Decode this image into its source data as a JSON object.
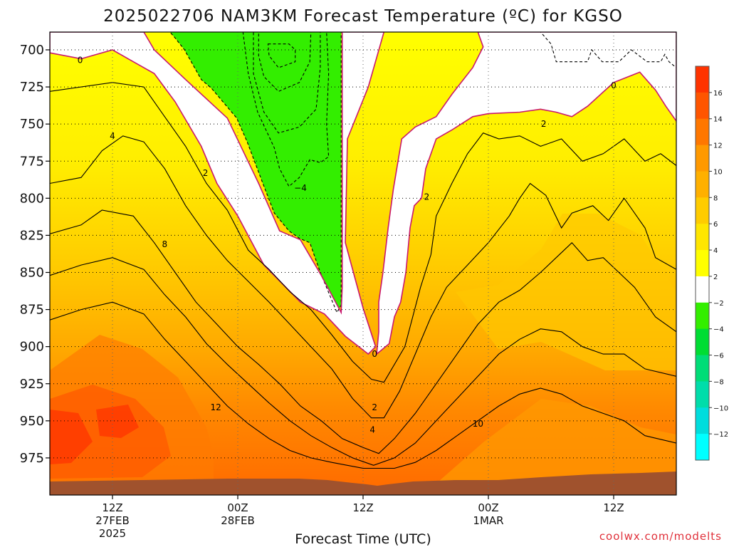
{
  "chart_data": {
    "type": "heatmap",
    "title": "2025022706 NAM3KM Forecast Temperature (ºC) for KGSO",
    "xlabel": "Forecast Time (UTC)",
    "ylabel": "",
    "y_axis": {
      "ticks": [
        700,
        725,
        750,
        775,
        800,
        825,
        850,
        875,
        900,
        925,
        950,
        975
      ],
      "range": [
        688,
        1000
      ],
      "inverted": true,
      "units": "hPa"
    },
    "x_axis": {
      "range_hours": [
        0,
        60
      ],
      "ticks": [
        {
          "hour": 6,
          "label": "12Z",
          "label2": "27FEB",
          "label3": "2025"
        },
        {
          "hour": 18,
          "label": "00Z",
          "label2": "28FEB",
          "label3": ""
        },
        {
          "hour": 30,
          "label": "12Z",
          "label2": "",
          "label3": ""
        },
        {
          "hour": 42,
          "label": "00Z",
          "label2": "1MAR",
          "label3": ""
        },
        {
          "hour": 54,
          "label": "12Z",
          "label2": "",
          "label3": ""
        }
      ]
    },
    "grid": true,
    "colorbar": {
      "placement": "right",
      "labels": [
        "16",
        "14",
        "12",
        "10",
        "8",
        "6",
        "4",
        "2",
        "−2",
        "−4",
        "−6",
        "−8",
        "−10",
        "−12"
      ],
      "colors": [
        "#ff3300",
        "#ff5500",
        "#ff7700",
        "#ff9900",
        "#ffb000",
        "#ffcc00",
        "#ffe600",
        "#ffff00",
        "#ffffff",
        "#33ee00",
        "#00dd33",
        "#00dd77",
        "#00ddaa",
        "#00dddd",
        "#00ffff"
      ]
    },
    "contour_labels": [
      {
        "text": "0",
        "hour": 2.9,
        "p": 707
      },
      {
        "text": "0",
        "hour": 54,
        "p": 724
      },
      {
        "text": "0",
        "hour": 31.1,
        "p": 905
      },
      {
        "text": "2",
        "hour": 14.9,
        "p": 783
      },
      {
        "text": "2",
        "hour": 36.1,
        "p": 799
      },
      {
        "text": "2",
        "hour": 47.3,
        "p": 750
      },
      {
        "text": "2",
        "hour": 31.1,
        "p": 941
      },
      {
        "text": "4",
        "hour": 6,
        "p": 758
      },
      {
        "text": "4",
        "hour": 30.9,
        "p": 956
      },
      {
        "text": "8",
        "hour": 11,
        "p": 831
      },
      {
        "text": "10",
        "hour": 41,
        "p": 952
      },
      {
        "text": "12",
        "hour": 15.9,
        "p": 941
      },
      {
        "text": "−4",
        "hour": 24,
        "p": 793
      }
    ],
    "series": [
      {
        "name": "",
        "values": [
          {
            "level": -12,
            "color": "#00ffff",
            "region": [
              [
                20.9,
                696
              ],
              [
                22.9,
                696
              ],
              [
                23.5,
                700
              ],
              [
                23.5,
                708
              ],
              [
                21.9,
                712
              ],
              [
                21,
                704
              ]
            ]
          },
          {
            "level": -10,
            "color": "#00ddaa",
            "region": [
              [
                20,
                688
              ],
              [
                25,
                688
              ],
              [
                24.9,
                708
              ],
              [
                23.9,
                722
              ],
              [
                21.9,
                728
              ],
              [
                20.5,
                718
              ],
              [
                20,
                704
              ]
            ]
          },
          {
            "level": -8,
            "color": "#00dd77",
            "region": [
              [
                19.5,
                688
              ],
              [
                25.9,
                688
              ],
              [
                25.9,
                712
              ],
              [
                25.5,
                740
              ],
              [
                23.9,
                752
              ],
              [
                21.9,
                756
              ],
              [
                20.5,
                742
              ],
              [
                19.5,
                716
              ]
            ]
          },
          {
            "level": -6,
            "color": "#00dd33",
            "region": [
              [
                18.5,
                688
              ],
              [
                26.5,
                688
              ],
              [
                26.7,
                716
              ],
              [
                26.5,
                750
              ],
              [
                26.7,
                772
              ],
              [
                25.9,
                776
              ],
              [
                24.9,
                774
              ],
              [
                23.9,
                786
              ],
              [
                22.9,
                792
              ],
              [
                22,
                780
              ],
              [
                21.5,
                766
              ],
              [
                19.9,
                742
              ],
              [
                19,
                716
              ]
            ]
          },
          {
            "level": -2,
            "color": "#33ee00",
            "region": [
              [
                11.5,
                688
              ],
              [
                27.9,
                688
              ],
              [
                27.9,
                700
              ],
              [
                27.9,
                872
              ],
              [
                27.5,
                877
              ],
              [
                25.9,
                850
              ],
              [
                24.9,
                830
              ],
              [
                23.9,
                827
              ],
              [
                22.9,
                822
              ],
              [
                21.5,
                810
              ],
              [
                20.4,
                790
              ],
              [
                18.9,
                762
              ],
              [
                17.9,
                746
              ],
              [
                15.5,
                726
              ],
              [
                14.5,
                720
              ],
              [
                12.9,
                700
              ],
              [
                12,
                692
              ]
            ]
          },
          {
            "level": -2,
            "color": "#33ee00",
            "region": [
              [
                46,
                688
              ],
              [
                60,
                688
              ],
              [
                60,
                712
              ],
              [
                59.3,
                708
              ],
              [
                58.9,
                703
              ],
              [
                58.5,
                708
              ],
              [
                57.2,
                708
              ],
              [
                55.7,
                700
              ],
              [
                54.5,
                708
              ],
              [
                52.9,
                708
              ],
              [
                51.9,
                700
              ],
              [
                51.5,
                708
              ],
              [
                49.9,
                708
              ],
              [
                48.5,
                708
              ],
              [
                48,
                696
              ],
              [
                47,
                688
              ]
            ]
          },
          {
            "level": 0,
            "color": "#ffffff",
            "region": [
              [
                0,
                688
              ],
              [
                9,
                688
              ],
              [
                10,
                700
              ],
              [
                13,
                720
              ],
              [
                17,
                746
              ],
              [
                20,
                790
              ],
              [
                22,
                822
              ],
              [
                24,
                828
              ],
              [
                26,
                852
              ],
              [
                27.9,
                877
              ],
              [
                28,
                860
              ],
              [
                28,
                688
              ],
              [
                32,
                688
              ],
              [
                30.5,
                725
              ],
              [
                28.5,
                760
              ],
              [
                28.3,
                830
              ],
              [
                30,
                874
              ],
              [
                31.2,
                900
              ],
              [
                30.5,
                905
              ],
              [
                28.3,
                893
              ],
              [
                26.3,
                878
              ],
              [
                24,
                870
              ],
              [
                20.5,
                845
              ],
              [
                18,
                812
              ],
              [
                16,
                790
              ],
              [
                14.5,
                765
              ],
              [
                12,
                735
              ],
              [
                10,
                716
              ],
              [
                8,
                708
              ],
              [
                6,
                700
              ],
              [
                3,
                706
              ],
              [
                0,
                702
              ]
            ]
          },
          {
            "level": 0,
            "color": "#ffffff",
            "region": [
              [
                41,
                688
              ],
              [
                60,
                688
              ],
              [
                60,
                748
              ],
              [
                59,
                738
              ],
              [
                58,
                727
              ],
              [
                56.5,
                715
              ],
              [
                54,
                722
              ],
              [
                51.5,
                738
              ],
              [
                50,
                745
              ],
              [
                48.5,
                742
              ],
              [
                47,
                740
              ],
              [
                45,
                742
              ],
              [
                42,
                743
              ],
              [
                40.5,
                745
              ],
              [
                38.5,
                754
              ],
              [
                37,
                760
              ],
              [
                36,
                780
              ],
              [
                35.6,
                800
              ],
              [
                34.9,
                805
              ],
              [
                34.5,
                820
              ],
              [
                34.1,
                850
              ],
              [
                33.6,
                870
              ],
              [
                33,
                880
              ],
              [
                32.5,
                898
              ],
              [
                31.3,
                905
              ],
              [
                31.5,
                890
              ],
              [
                31.5,
                870
              ],
              [
                31.9,
                850
              ],
              [
                32.4,
                820
              ],
              [
                32.9,
                794
              ],
              [
                33.7,
                760
              ],
              [
                35,
                752
              ],
              [
                37,
                745
              ],
              [
                38.5,
                730
              ],
              [
                40.5,
                712
              ],
              [
                41.5,
                698
              ]
            ]
          }
        ]
      }
    ]
  }
}
